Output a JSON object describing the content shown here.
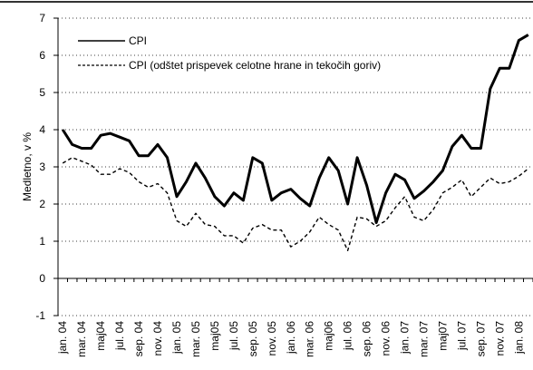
{
  "chart_data": {
    "type": "line",
    "ylabel": "Medletno, v %",
    "categories": [
      "jan. 04",
      null,
      "mar. 04",
      null,
      "maj04",
      null,
      "jul. 04",
      null,
      "sep. 04",
      null,
      "nov. 04",
      null,
      "jan. 05",
      null,
      "mar. 05",
      null,
      "maj05",
      null,
      "jul. 05",
      null,
      "sep. 05",
      null,
      "nov. 05",
      null,
      "jan. 06",
      null,
      "mar. 06",
      null,
      "maj06",
      null,
      "jul. 06",
      null,
      "sep. 06",
      null,
      "nov. 06",
      null,
      "jan. 07",
      null,
      "mar. 07",
      null,
      "maj07",
      null,
      "jul. 07",
      null,
      "sep. 07",
      null,
      "nov. 07",
      null,
      "jan. 08",
      null
    ],
    "series": [
      {
        "name": "CPI",
        "color": "#000000",
        "style": "solid",
        "values": [
          4.0,
          3.6,
          3.5,
          3.5,
          3.85,
          3.9,
          3.8,
          3.7,
          3.3,
          3.3,
          3.6,
          3.25,
          2.2,
          2.6,
          3.1,
          2.7,
          2.2,
          1.95,
          2.3,
          2.1,
          3.25,
          3.1,
          2.1,
          2.3,
          2.4,
          2.15,
          1.95,
          2.7,
          3.25,
          2.9,
          2.0,
          3.25,
          2.5,
          1.5,
          2.3,
          2.8,
          2.65,
          2.15,
          2.35,
          2.6,
          2.9,
          3.55,
          3.85,
          3.5,
          3.5,
          5.1,
          5.65,
          5.65,
          6.4,
          6.55
        ]
      },
      {
        "name": "CPI (odštet prispevek celotne hrane in tekočih goriv)",
        "color": "#000000",
        "style": "dashed",
        "values": [
          3.1,
          3.25,
          3.15,
          3.05,
          2.8,
          2.8,
          2.95,
          2.85,
          2.6,
          2.45,
          2.55,
          2.3,
          1.55,
          1.4,
          1.75,
          1.45,
          1.4,
          1.15,
          1.15,
          0.95,
          1.35,
          1.45,
          1.3,
          1.3,
          0.85,
          1.0,
          1.25,
          1.65,
          1.45,
          1.3,
          0.75,
          1.65,
          1.6,
          1.4,
          1.55,
          1.9,
          2.2,
          1.65,
          1.55,
          1.85,
          2.3,
          2.45,
          2.65,
          2.2,
          2.45,
          2.7,
          2.55,
          2.6,
          2.75,
          2.95
        ]
      }
    ],
    "ylim": [
      -1,
      7
    ],
    "yticks": [
      -1,
      0,
      1,
      2,
      3,
      4,
      5,
      6,
      7
    ],
    "grid": true,
    "legend": "upper left"
  }
}
